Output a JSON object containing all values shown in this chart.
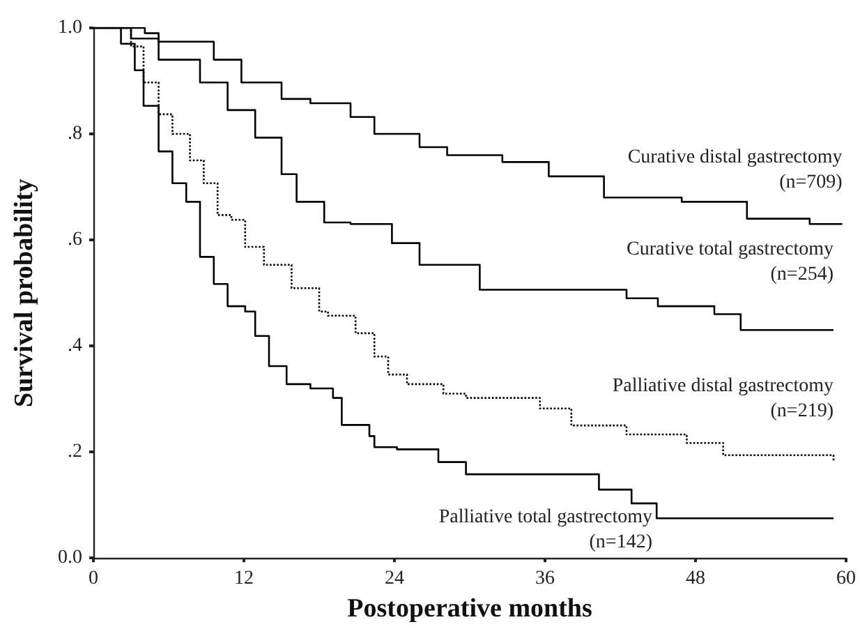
{
  "chart_data": {
    "type": "step",
    "xlabel": "Postoperative months",
    "ylabel": "Survival probability",
    "xlim": [
      0,
      60
    ],
    "xticks": [
      0,
      12,
      24,
      36,
      48,
      60
    ],
    "ylim": [
      0,
      1
    ],
    "yticks": [
      {
        "value": 0,
        "label": "0.0"
      },
      {
        "value": 0.2,
        "label": ".2"
      },
      {
        "value": 0.4,
        "label": ".4"
      },
      {
        "value": 0.6,
        "label": ".6"
      },
      {
        "value": 0.8,
        "label": ".8"
      },
      {
        "value": 1,
        "label": "1.0"
      }
    ],
    "grid": false,
    "legend": false,
    "marker": "none",
    "series": [
      {
        "name": "Curative distal gastrectomy (n=709)",
        "color": "#000000",
        "line_style": "solid",
        "x": [
          0,
          4.1,
          5.2,
          9.6,
          11.8,
          15,
          17.3,
          20.5,
          22.4,
          26,
          28.2,
          32.6,
          36.3,
          40.7,
          46.9,
          52.1,
          57.1,
          59.7
        ],
        "values": [
          1,
          0.99,
          0.974,
          0.94,
          0.897,
          0.866,
          0.858,
          0.832,
          0.8,
          0.775,
          0.76,
          0.747,
          0.72,
          0.68,
          0.672,
          0.64,
          0.63,
          0.63
        ]
      },
      {
        "name": "Curative total gastrectomy (n=254)",
        "color": "#000000",
        "line_style": "solid",
        "x": [
          0,
          3,
          5.2,
          8.5,
          10.7,
          12.9,
          15,
          16.2,
          18.4,
          20.5,
          23.8,
          26,
          30.8,
          40.3,
          42.5,
          45,
          49.5,
          51.6,
          59
        ],
        "values": [
          1,
          0.98,
          0.94,
          0.897,
          0.845,
          0.793,
          0.724,
          0.672,
          0.633,
          0.63,
          0.594,
          0.553,
          0.506,
          0.506,
          0.49,
          0.475,
          0.46,
          0.43,
          0.43
        ]
      },
      {
        "name": "Palliative distal gastrectomy (n=219)",
        "color": "#000000",
        "line_style": "dotted",
        "x": [
          0,
          3,
          4,
          5.2,
          6.3,
          7.7,
          8.8,
          9.9,
          11,
          12.1,
          13.6,
          15.8,
          18,
          18.7,
          20.9,
          22.4,
          23.5,
          25,
          27.9,
          29.7,
          35.6,
          38.1,
          42.5,
          47.3,
          50.2,
          59
        ],
        "values": [
          1,
          0.965,
          0.897,
          0.837,
          0.8,
          0.75,
          0.707,
          0.647,
          0.638,
          0.587,
          0.553,
          0.509,
          0.465,
          0.457,
          0.424,
          0.38,
          0.346,
          0.328,
          0.31,
          0.302,
          0.282,
          0.25,
          0.233,
          0.217,
          0.194,
          0.181
        ]
      },
      {
        "name": "Palliative total gastrectomy (n=142)",
        "color": "#000000",
        "line_style": "solid",
        "x": [
          0,
          2.2,
          3.3,
          4,
          5.2,
          6.3,
          7.4,
          8.5,
          9.6,
          10.7,
          12.1,
          12.9,
          14,
          15.4,
          17.3,
          19.1,
          19.8,
          22,
          22.4,
          24.2,
          27.5,
          29.7,
          36.3,
          40.3,
          42.9,
          44.9,
          59
        ],
        "values": [
          1,
          0.97,
          0.92,
          0.853,
          0.767,
          0.707,
          0.672,
          0.568,
          0.517,
          0.475,
          0.465,
          0.419,
          0.362,
          0.328,
          0.32,
          0.302,
          0.251,
          0.23,
          0.209,
          0.205,
          0.181,
          0.158,
          0.158,
          0.129,
          0.103,
          0.075,
          0.075
        ]
      }
    ]
  }
}
